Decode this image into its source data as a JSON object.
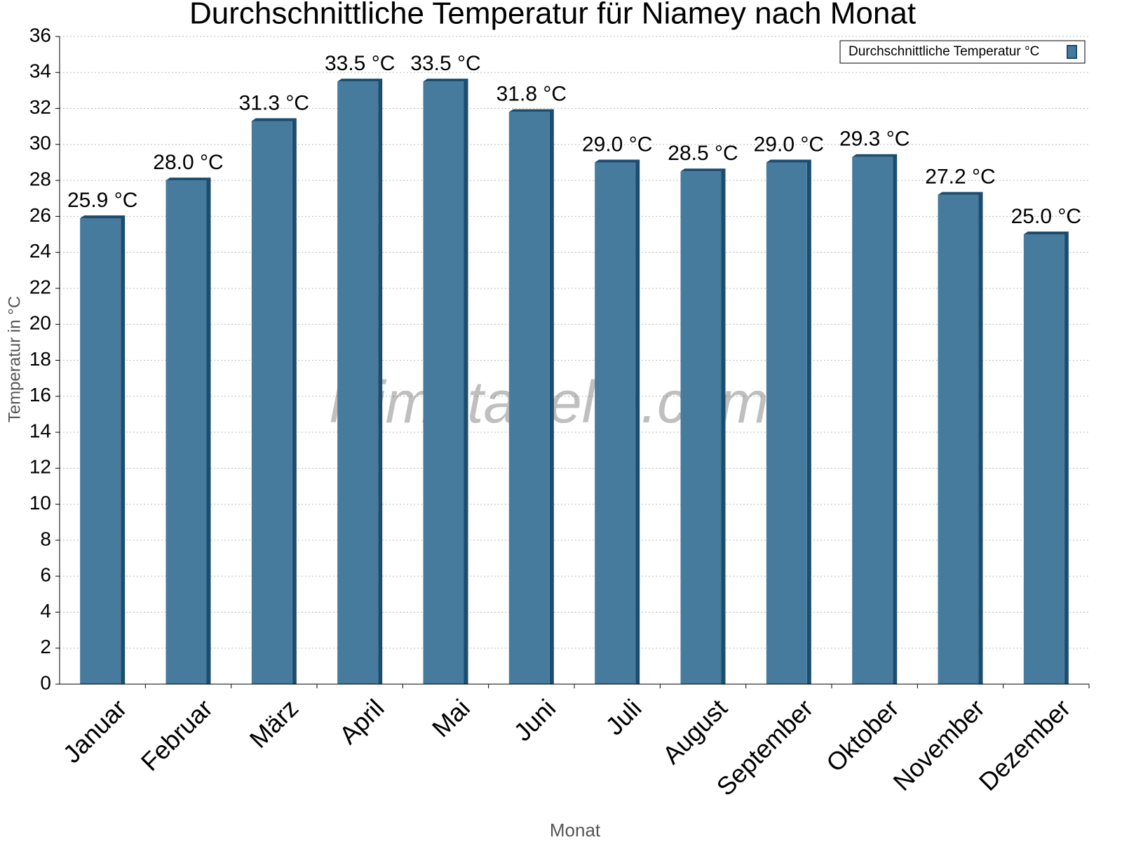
{
  "chart_data": {
    "type": "bar",
    "title": "Durchschnittliche Temperatur für Niamey nach Monat",
    "x_label": "Monat",
    "y_label": "Temperatur in °C",
    "watermark": "klimatabelle.com",
    "categories": [
      "Januar",
      "Februar",
      "März",
      "April",
      "Mai",
      "Juni",
      "Juli",
      "August",
      "September",
      "Oktober",
      "November",
      "Dezember"
    ],
    "series": [
      {
        "name": "Durchschnittliche Temperatur °C",
        "color": "#467b9e",
        "values": [
          25.9,
          28.0,
          31.3,
          33.5,
          33.5,
          31.8,
          29.0,
          28.5,
          29.0,
          29.3,
          27.2,
          25.0
        ],
        "value_labels": [
          "25.9 °C",
          "28.0 °C",
          "31.3 °C",
          "33.5 °C",
          "33.5 °C",
          "31.8 °C",
          "29.0 °C",
          "28.5 °C",
          "29.0 °C",
          "29.3 °C",
          "27.2 °C",
          "25.0 °C"
        ]
      }
    ],
    "ylim": [
      0,
      36
    ],
    "yticks": [
      0,
      2,
      4,
      6,
      8,
      10,
      12,
      14,
      16,
      18,
      20,
      22,
      24,
      26,
      28,
      30,
      32,
      34,
      36
    ],
    "grid": true,
    "legend": "top-right"
  }
}
